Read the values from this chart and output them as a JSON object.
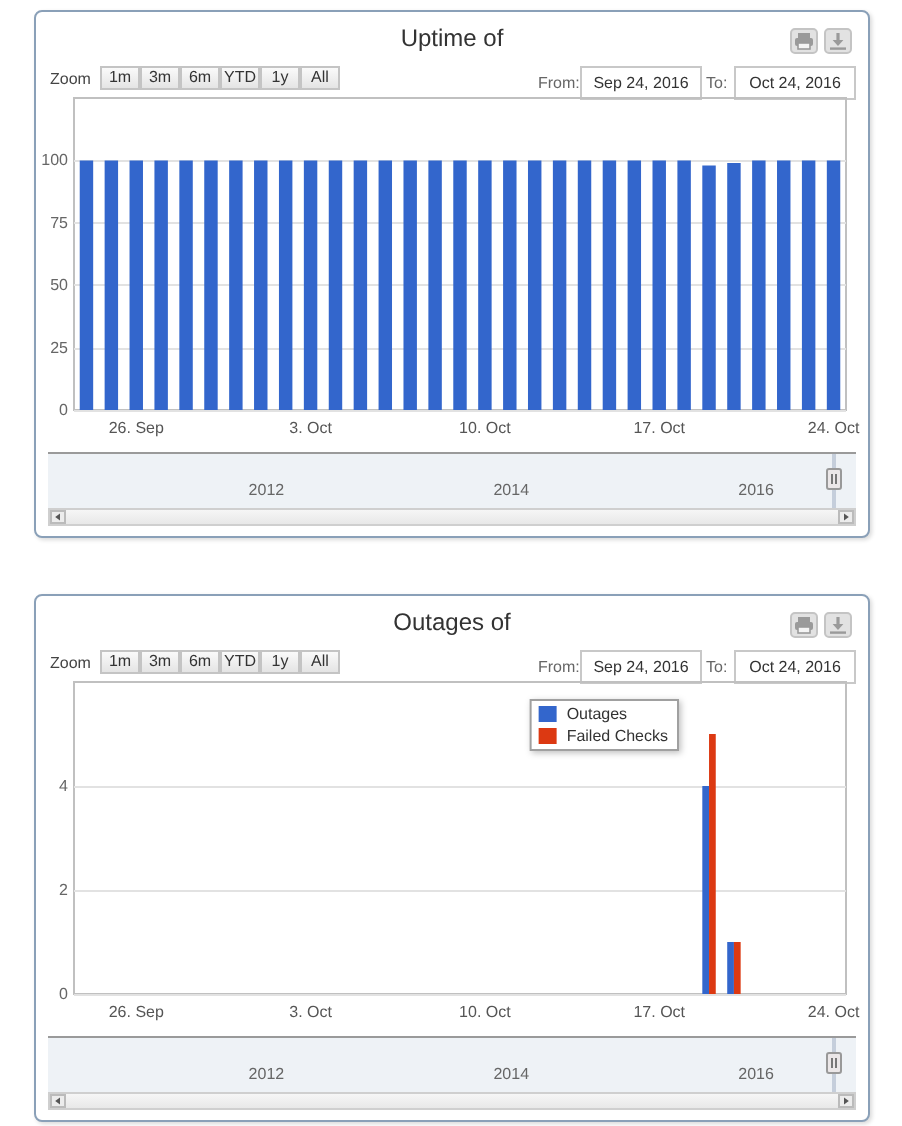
{
  "chart_data": [
    {
      "type": "bar",
      "title": "Uptime of",
      "categories": [
        null,
        null,
        "26. Sep",
        null,
        null,
        null,
        null,
        null,
        null,
        "3. Oct",
        null,
        null,
        null,
        null,
        null,
        null,
        "10. Oct",
        null,
        null,
        null,
        null,
        null,
        null,
        "17. Oct",
        null,
        null,
        null,
        null,
        null,
        null,
        "24. Oct"
      ],
      "values": [
        100,
        100,
        100,
        100,
        100,
        100,
        100,
        100,
        100,
        100,
        100,
        100,
        100,
        100,
        100,
        100,
        100,
        100,
        100,
        100,
        100,
        100,
        100,
        100,
        100,
        98,
        99,
        100,
        100,
        100,
        100
      ],
      "color": "#3366cc",
      "ylim": [
        0,
        125
      ],
      "yticks": [
        0,
        25,
        50,
        75,
        100
      ],
      "grid": "y",
      "annotations": [
        "Zoom",
        "1m",
        "3m",
        "6m",
        "YTD",
        "1y",
        "All",
        "From:",
        "Sep 24, 2016",
        "To:",
        "Oct 24, 2016"
      ],
      "x2lim": [
        2010.2,
        2016.8
      ],
      "x2ticks": [
        2012,
        2014,
        2016
      ]
    },
    {
      "type": "bar",
      "title": "Outages of",
      "categories": [
        null,
        null,
        "26. Sep",
        null,
        null,
        null,
        null,
        null,
        null,
        "3. Oct",
        null,
        null,
        null,
        null,
        null,
        null,
        "10. Oct",
        null,
        null,
        null,
        null,
        null,
        null,
        "17. Oct",
        null,
        null,
        null,
        null,
        null,
        null,
        "24. Oct"
      ],
      "series": [
        {
          "name": "Outages",
          "color": "#3366cc",
          "values": [
            0,
            0,
            0,
            0,
            0,
            0,
            0,
            0,
            0,
            0,
            0,
            0,
            0,
            0,
            0,
            0,
            0,
            0,
            0,
            0,
            0,
            0,
            0,
            0,
            0,
            4,
            1,
            0,
            0,
            0,
            0
          ]
        },
        {
          "name": "Failed Checks",
          "color": "#dc3912",
          "values": [
            0,
            0,
            0,
            0,
            0,
            0,
            0,
            0,
            0,
            0,
            0,
            0,
            0,
            0,
            0,
            0,
            0,
            0,
            0,
            0,
            0,
            0,
            0,
            0,
            0,
            5,
            1,
            0,
            0,
            0,
            0
          ]
        }
      ],
      "ylim": [
        0,
        6
      ],
      "yticks": [
        0,
        2,
        4
      ],
      "grid": "y",
      "legend": "top right",
      "annotations": [
        "Zoom",
        "1m",
        "3m",
        "6m",
        "YTD",
        "1y",
        "All",
        "From:",
        "Sep 24, 2016",
        "To:",
        "Oct 24, 2016"
      ],
      "x2lim": [
        2010.2,
        2016.8
      ],
      "x2ticks": [
        2012,
        2014,
        2016
      ]
    }
  ]
}
